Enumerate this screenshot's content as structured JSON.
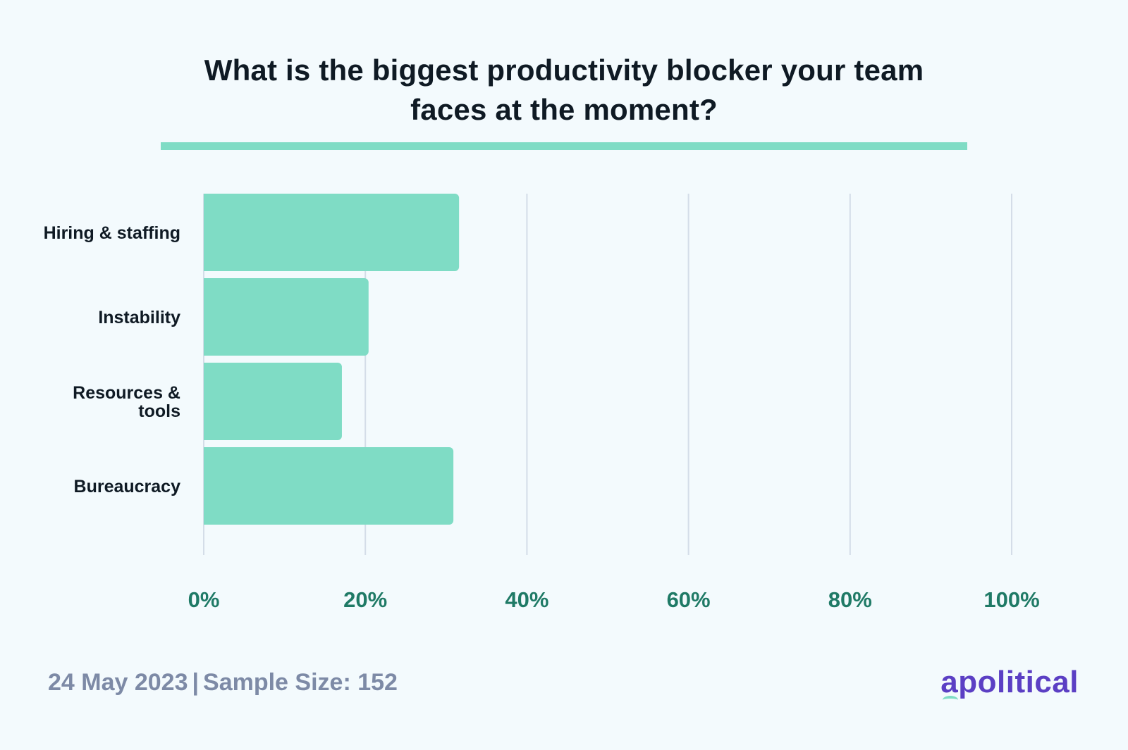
{
  "title_line1": "What is the biggest productivity blocker your team",
  "title_line2": "faces at the moment?",
  "footer": {
    "date": "24 May 2023",
    "separator": "|",
    "sample": "Sample Size: 152"
  },
  "logo_text": "apolitical",
  "colors": {
    "bar": "#7fdcc5",
    "tick_label": "#1f7a66",
    "gridline": "#d4dde8",
    "category_label": "#0f1a24",
    "footer": "#7d8aa6",
    "logo": "#5b3fc4"
  },
  "chart_data": {
    "type": "bar",
    "orientation": "horizontal",
    "categories": [
      "Hiring & staffing",
      "Instability",
      "Resources & tools",
      "Bureaucracy"
    ],
    "category_lines": [
      [
        "Hiring & staffing"
      ],
      [
        "Instability"
      ],
      [
        "Resources &",
        "tools"
      ],
      [
        "Bureaucracy"
      ]
    ],
    "values": [
      31.6,
      20.4,
      17.1,
      30.9
    ],
    "xlim": [
      0,
      100
    ],
    "xticks": [
      0,
      20,
      40,
      60,
      80,
      100
    ],
    "xtick_labels": [
      "0%",
      "20%",
      "40%",
      "60%",
      "80%",
      "100%"
    ],
    "grid": true,
    "title": "What is the biggest productivity blocker your team faces at the moment?",
    "xlabel": "",
    "ylabel": ""
  }
}
